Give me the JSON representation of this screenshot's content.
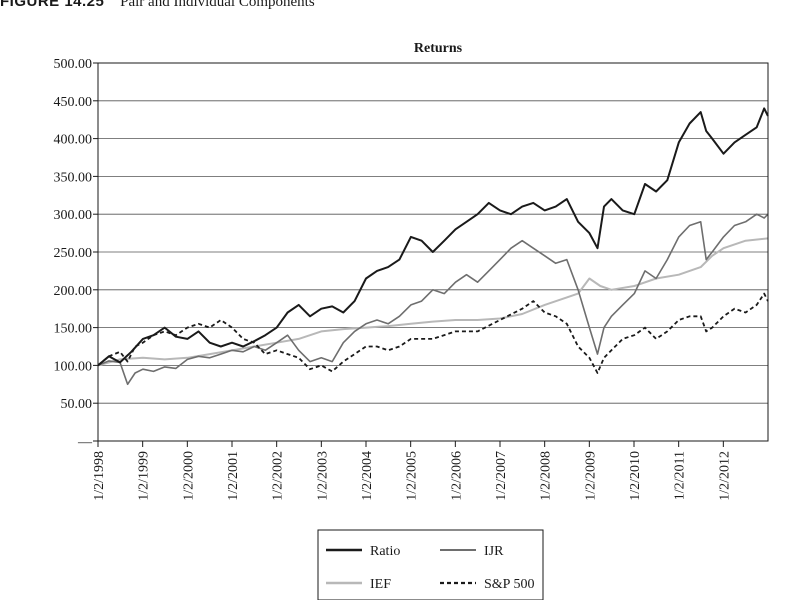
{
  "figure": {
    "label": "FIGURE 14.25",
    "caption": "Pair and Individual Components"
  },
  "chart_data": {
    "type": "line",
    "title": "Returns",
    "xlabel": "",
    "ylabel": "",
    "ylim": [
      0,
      500
    ],
    "xlim": [
      "1998-01-02",
      "2013-01-01"
    ],
    "y_ticks": [
      {
        "value": 0,
        "label": "—"
      },
      {
        "value": 50,
        "label": "50.00"
      },
      {
        "value": 100,
        "label": "100.00"
      },
      {
        "value": 150,
        "label": "150.00"
      },
      {
        "value": 200,
        "label": "200.00"
      },
      {
        "value": 250,
        "label": "250.00"
      },
      {
        "value": 300,
        "label": "300.00"
      },
      {
        "value": 350,
        "label": "350.00"
      },
      {
        "value": 400,
        "label": "400.00"
      },
      {
        "value": 450,
        "label": "450.00"
      },
      {
        "value": 500,
        "label": "500.00"
      }
    ],
    "x_tick_labels": [
      "1/2/1998",
      "1/2/1999",
      "1/2/2000",
      "1/2/2001",
      "1/2/2002",
      "1/2/2003",
      "1/2/2004",
      "1/2/2005",
      "1/2/2006",
      "1/2/2007",
      "1/2/2008",
      "1/2/2009",
      "1/2/2010",
      "1/2/2011",
      "1/2/2012"
    ],
    "grid": "horizontal",
    "legend_position": "bottom",
    "series": [
      {
        "name": "Ratio",
        "color": "#1a1a1a",
        "style": "solid",
        "width": 2.0,
        "points": [
          [
            "1998-01-02",
            100
          ],
          [
            "1998-04-01",
            112
          ],
          [
            "1998-07-01",
            104
          ],
          [
            "1998-10-01",
            118
          ],
          [
            "1999-01-04",
            135
          ],
          [
            "1999-04-01",
            140
          ],
          [
            "1999-07-01",
            150
          ],
          [
            "1999-10-01",
            138
          ],
          [
            "2000-01-03",
            135
          ],
          [
            "2000-04-03",
            145
          ],
          [
            "2000-07-03",
            130
          ],
          [
            "2000-10-02",
            125
          ],
          [
            "2001-01-02",
            130
          ],
          [
            "2001-04-02",
            125
          ],
          [
            "2001-07-02",
            132
          ],
          [
            "2001-10-01",
            140
          ],
          [
            "2002-01-02",
            150
          ],
          [
            "2002-04-01",
            170
          ],
          [
            "2002-07-01",
            180
          ],
          [
            "2002-10-01",
            165
          ],
          [
            "2003-01-02",
            175
          ],
          [
            "2003-04-01",
            178
          ],
          [
            "2003-07-01",
            170
          ],
          [
            "2003-10-01",
            185
          ],
          [
            "2004-01-02",
            215
          ],
          [
            "2004-04-01",
            225
          ],
          [
            "2004-07-01",
            230
          ],
          [
            "2004-10-01",
            240
          ],
          [
            "2005-01-03",
            270
          ],
          [
            "2005-04-01",
            265
          ],
          [
            "2005-07-01",
            250
          ],
          [
            "2005-10-03",
            265
          ],
          [
            "2006-01-03",
            280
          ],
          [
            "2006-04-03",
            290
          ],
          [
            "2006-07-03",
            300
          ],
          [
            "2006-10-02",
            315
          ],
          [
            "2007-01-02",
            305
          ],
          [
            "2007-04-02",
            300
          ],
          [
            "2007-07-02",
            310
          ],
          [
            "2007-10-01",
            315
          ],
          [
            "2008-01-02",
            305
          ],
          [
            "2008-04-01",
            310
          ],
          [
            "2008-07-01",
            320
          ],
          [
            "2008-10-01",
            290
          ],
          [
            "2009-01-02",
            275
          ],
          [
            "2009-03-09",
            255
          ],
          [
            "2009-05-01",
            310
          ],
          [
            "2009-07-01",
            320
          ],
          [
            "2009-10-01",
            305
          ],
          [
            "2010-01-04",
            300
          ],
          [
            "2010-04-01",
            340
          ],
          [
            "2010-07-01",
            330
          ],
          [
            "2010-10-01",
            345
          ],
          [
            "2011-01-03",
            395
          ],
          [
            "2011-04-01",
            420
          ],
          [
            "2011-07-01",
            435
          ],
          [
            "2011-08-15",
            410
          ],
          [
            "2011-10-03",
            400
          ],
          [
            "2012-01-03",
            380
          ],
          [
            "2012-04-02",
            395
          ],
          [
            "2012-07-02",
            405
          ],
          [
            "2012-10-01",
            415
          ],
          [
            "2012-12-01",
            440
          ],
          [
            "2012-12-31",
            430
          ]
        ]
      },
      {
        "name": "IJR",
        "color": "#6e6e6e",
        "style": "solid",
        "width": 1.6,
        "points": [
          [
            "1998-01-02",
            100
          ],
          [
            "1998-04-01",
            106
          ],
          [
            "1998-07-01",
            104
          ],
          [
            "1998-09-01",
            75
          ],
          [
            "1998-11-01",
            90
          ],
          [
            "1999-01-04",
            95
          ],
          [
            "1999-04-01",
            92
          ],
          [
            "1999-07-01",
            98
          ],
          [
            "1999-10-01",
            96
          ],
          [
            "2000-01-03",
            108
          ],
          [
            "2000-04-03",
            112
          ],
          [
            "2000-07-03",
            110
          ],
          [
            "2000-10-02",
            115
          ],
          [
            "2001-01-02",
            120
          ],
          [
            "2001-04-02",
            118
          ],
          [
            "2001-07-02",
            125
          ],
          [
            "2001-10-01",
            120
          ],
          [
            "2002-01-02",
            130
          ],
          [
            "2002-04-01",
            140
          ],
          [
            "2002-07-01",
            120
          ],
          [
            "2002-10-01",
            105
          ],
          [
            "2003-01-02",
            110
          ],
          [
            "2003-04-01",
            105
          ],
          [
            "2003-07-01",
            130
          ],
          [
            "2003-10-01",
            145
          ],
          [
            "2004-01-02",
            155
          ],
          [
            "2004-04-01",
            160
          ],
          [
            "2004-07-01",
            155
          ],
          [
            "2004-10-01",
            165
          ],
          [
            "2005-01-03",
            180
          ],
          [
            "2005-04-01",
            185
          ],
          [
            "2005-07-01",
            200
          ],
          [
            "2005-10-03",
            195
          ],
          [
            "2006-01-03",
            210
          ],
          [
            "2006-04-03",
            220
          ],
          [
            "2006-07-03",
            210
          ],
          [
            "2006-10-02",
            225
          ],
          [
            "2007-01-02",
            240
          ],
          [
            "2007-04-02",
            255
          ],
          [
            "2007-07-02",
            265
          ],
          [
            "2007-10-01",
            255
          ],
          [
            "2008-01-02",
            245
          ],
          [
            "2008-04-01",
            235
          ],
          [
            "2008-07-01",
            240
          ],
          [
            "2008-10-01",
            200
          ],
          [
            "2009-01-02",
            150
          ],
          [
            "2009-03-09",
            115
          ],
          [
            "2009-05-01",
            150
          ],
          [
            "2009-07-01",
            165
          ],
          [
            "2009-10-01",
            180
          ],
          [
            "2010-01-04",
            195
          ],
          [
            "2010-04-01",
            225
          ],
          [
            "2010-07-01",
            215
          ],
          [
            "2010-10-01",
            240
          ],
          [
            "2011-01-03",
            270
          ],
          [
            "2011-04-01",
            285
          ],
          [
            "2011-07-01",
            290
          ],
          [
            "2011-08-15",
            240
          ],
          [
            "2011-10-03",
            250
          ],
          [
            "2012-01-03",
            270
          ],
          [
            "2012-04-02",
            285
          ],
          [
            "2012-07-02",
            290
          ],
          [
            "2012-10-01",
            300
          ],
          [
            "2012-12-01",
            295
          ],
          [
            "2012-12-31",
            300
          ]
        ]
      },
      {
        "name": "IEF",
        "color": "#b8b8b8",
        "style": "solid",
        "width": 2.0,
        "points": [
          [
            "1998-01-02",
            100
          ],
          [
            "1998-07-01",
            108
          ],
          [
            "1999-01-04",
            110
          ],
          [
            "1999-07-01",
            108
          ],
          [
            "2000-01-03",
            110
          ],
          [
            "2000-07-03",
            115
          ],
          [
            "2001-01-02",
            120
          ],
          [
            "2001-07-02",
            125
          ],
          [
            "2002-01-02",
            130
          ],
          [
            "2002-07-01",
            135
          ],
          [
            "2003-01-02",
            145
          ],
          [
            "2003-07-01",
            148
          ],
          [
            "2004-01-02",
            150
          ],
          [
            "2004-07-01",
            152
          ],
          [
            "2005-01-03",
            155
          ],
          [
            "2005-07-01",
            158
          ],
          [
            "2006-01-03",
            160
          ],
          [
            "2006-07-03",
            160
          ],
          [
            "2007-01-02",
            162
          ],
          [
            "2007-07-02",
            168
          ],
          [
            "2008-01-02",
            180
          ],
          [
            "2008-07-01",
            190
          ],
          [
            "2008-10-01",
            195
          ],
          [
            "2009-01-02",
            215
          ],
          [
            "2009-04-01",
            205
          ],
          [
            "2009-07-01",
            200
          ],
          [
            "2010-01-04",
            205
          ],
          [
            "2010-07-01",
            215
          ],
          [
            "2011-01-03",
            220
          ],
          [
            "2011-07-01",
            230
          ],
          [
            "2011-10-03",
            245
          ],
          [
            "2012-01-03",
            255
          ],
          [
            "2012-07-02",
            265
          ],
          [
            "2012-12-31",
            268
          ]
        ]
      },
      {
        "name": "S&P 500",
        "color": "#1a1a1a",
        "style": "dashed",
        "width": 1.8,
        "points": [
          [
            "1998-01-02",
            100
          ],
          [
            "1998-04-01",
            112
          ],
          [
            "1998-07-01",
            118
          ],
          [
            "1998-09-01",
            105
          ],
          [
            "1998-11-01",
            125
          ],
          [
            "1999-01-04",
            130
          ],
          [
            "1999-04-01",
            140
          ],
          [
            "1999-07-01",
            145
          ],
          [
            "1999-10-01",
            140
          ],
          [
            "2000-01-03",
            150
          ],
          [
            "2000-04-03",
            155
          ],
          [
            "2000-07-03",
            150
          ],
          [
            "2000-10-02",
            160
          ],
          [
            "2001-01-02",
            150
          ],
          [
            "2001-04-02",
            135
          ],
          [
            "2001-07-02",
            130
          ],
          [
            "2001-10-01",
            115
          ],
          [
            "2002-01-02",
            120
          ],
          [
            "2002-04-01",
            115
          ],
          [
            "2002-07-01",
            110
          ],
          [
            "2002-10-01",
            95
          ],
          [
            "2003-01-02",
            100
          ],
          [
            "2003-04-01",
            92
          ],
          [
            "2003-07-01",
            105
          ],
          [
            "2003-10-01",
            115
          ],
          [
            "2004-01-02",
            125
          ],
          [
            "2004-04-01",
            125
          ],
          [
            "2004-07-01",
            120
          ],
          [
            "2004-10-01",
            125
          ],
          [
            "2005-01-03",
            135
          ],
          [
            "2005-07-01",
            135
          ],
          [
            "2006-01-03",
            145
          ],
          [
            "2006-07-03",
            145
          ],
          [
            "2007-01-02",
            160
          ],
          [
            "2007-07-02",
            175
          ],
          [
            "2007-10-01",
            185
          ],
          [
            "2008-01-02",
            170
          ],
          [
            "2008-04-01",
            165
          ],
          [
            "2008-07-01",
            155
          ],
          [
            "2008-10-01",
            125
          ],
          [
            "2009-01-02",
            110
          ],
          [
            "2009-03-09",
            90
          ],
          [
            "2009-05-01",
            110
          ],
          [
            "2009-07-01",
            120
          ],
          [
            "2009-10-01",
            135
          ],
          [
            "2010-01-04",
            140
          ],
          [
            "2010-04-01",
            150
          ],
          [
            "2010-07-01",
            135
          ],
          [
            "2010-10-01",
            145
          ],
          [
            "2011-01-03",
            160
          ],
          [
            "2011-04-01",
            165
          ],
          [
            "2011-07-01",
            165
          ],
          [
            "2011-08-15",
            145
          ],
          [
            "2011-10-03",
            150
          ],
          [
            "2012-01-03",
            165
          ],
          [
            "2012-04-02",
            175
          ],
          [
            "2012-07-02",
            170
          ],
          [
            "2012-10-01",
            180
          ],
          [
            "2012-12-01",
            195
          ],
          [
            "2012-12-31",
            185
          ]
        ]
      }
    ]
  }
}
